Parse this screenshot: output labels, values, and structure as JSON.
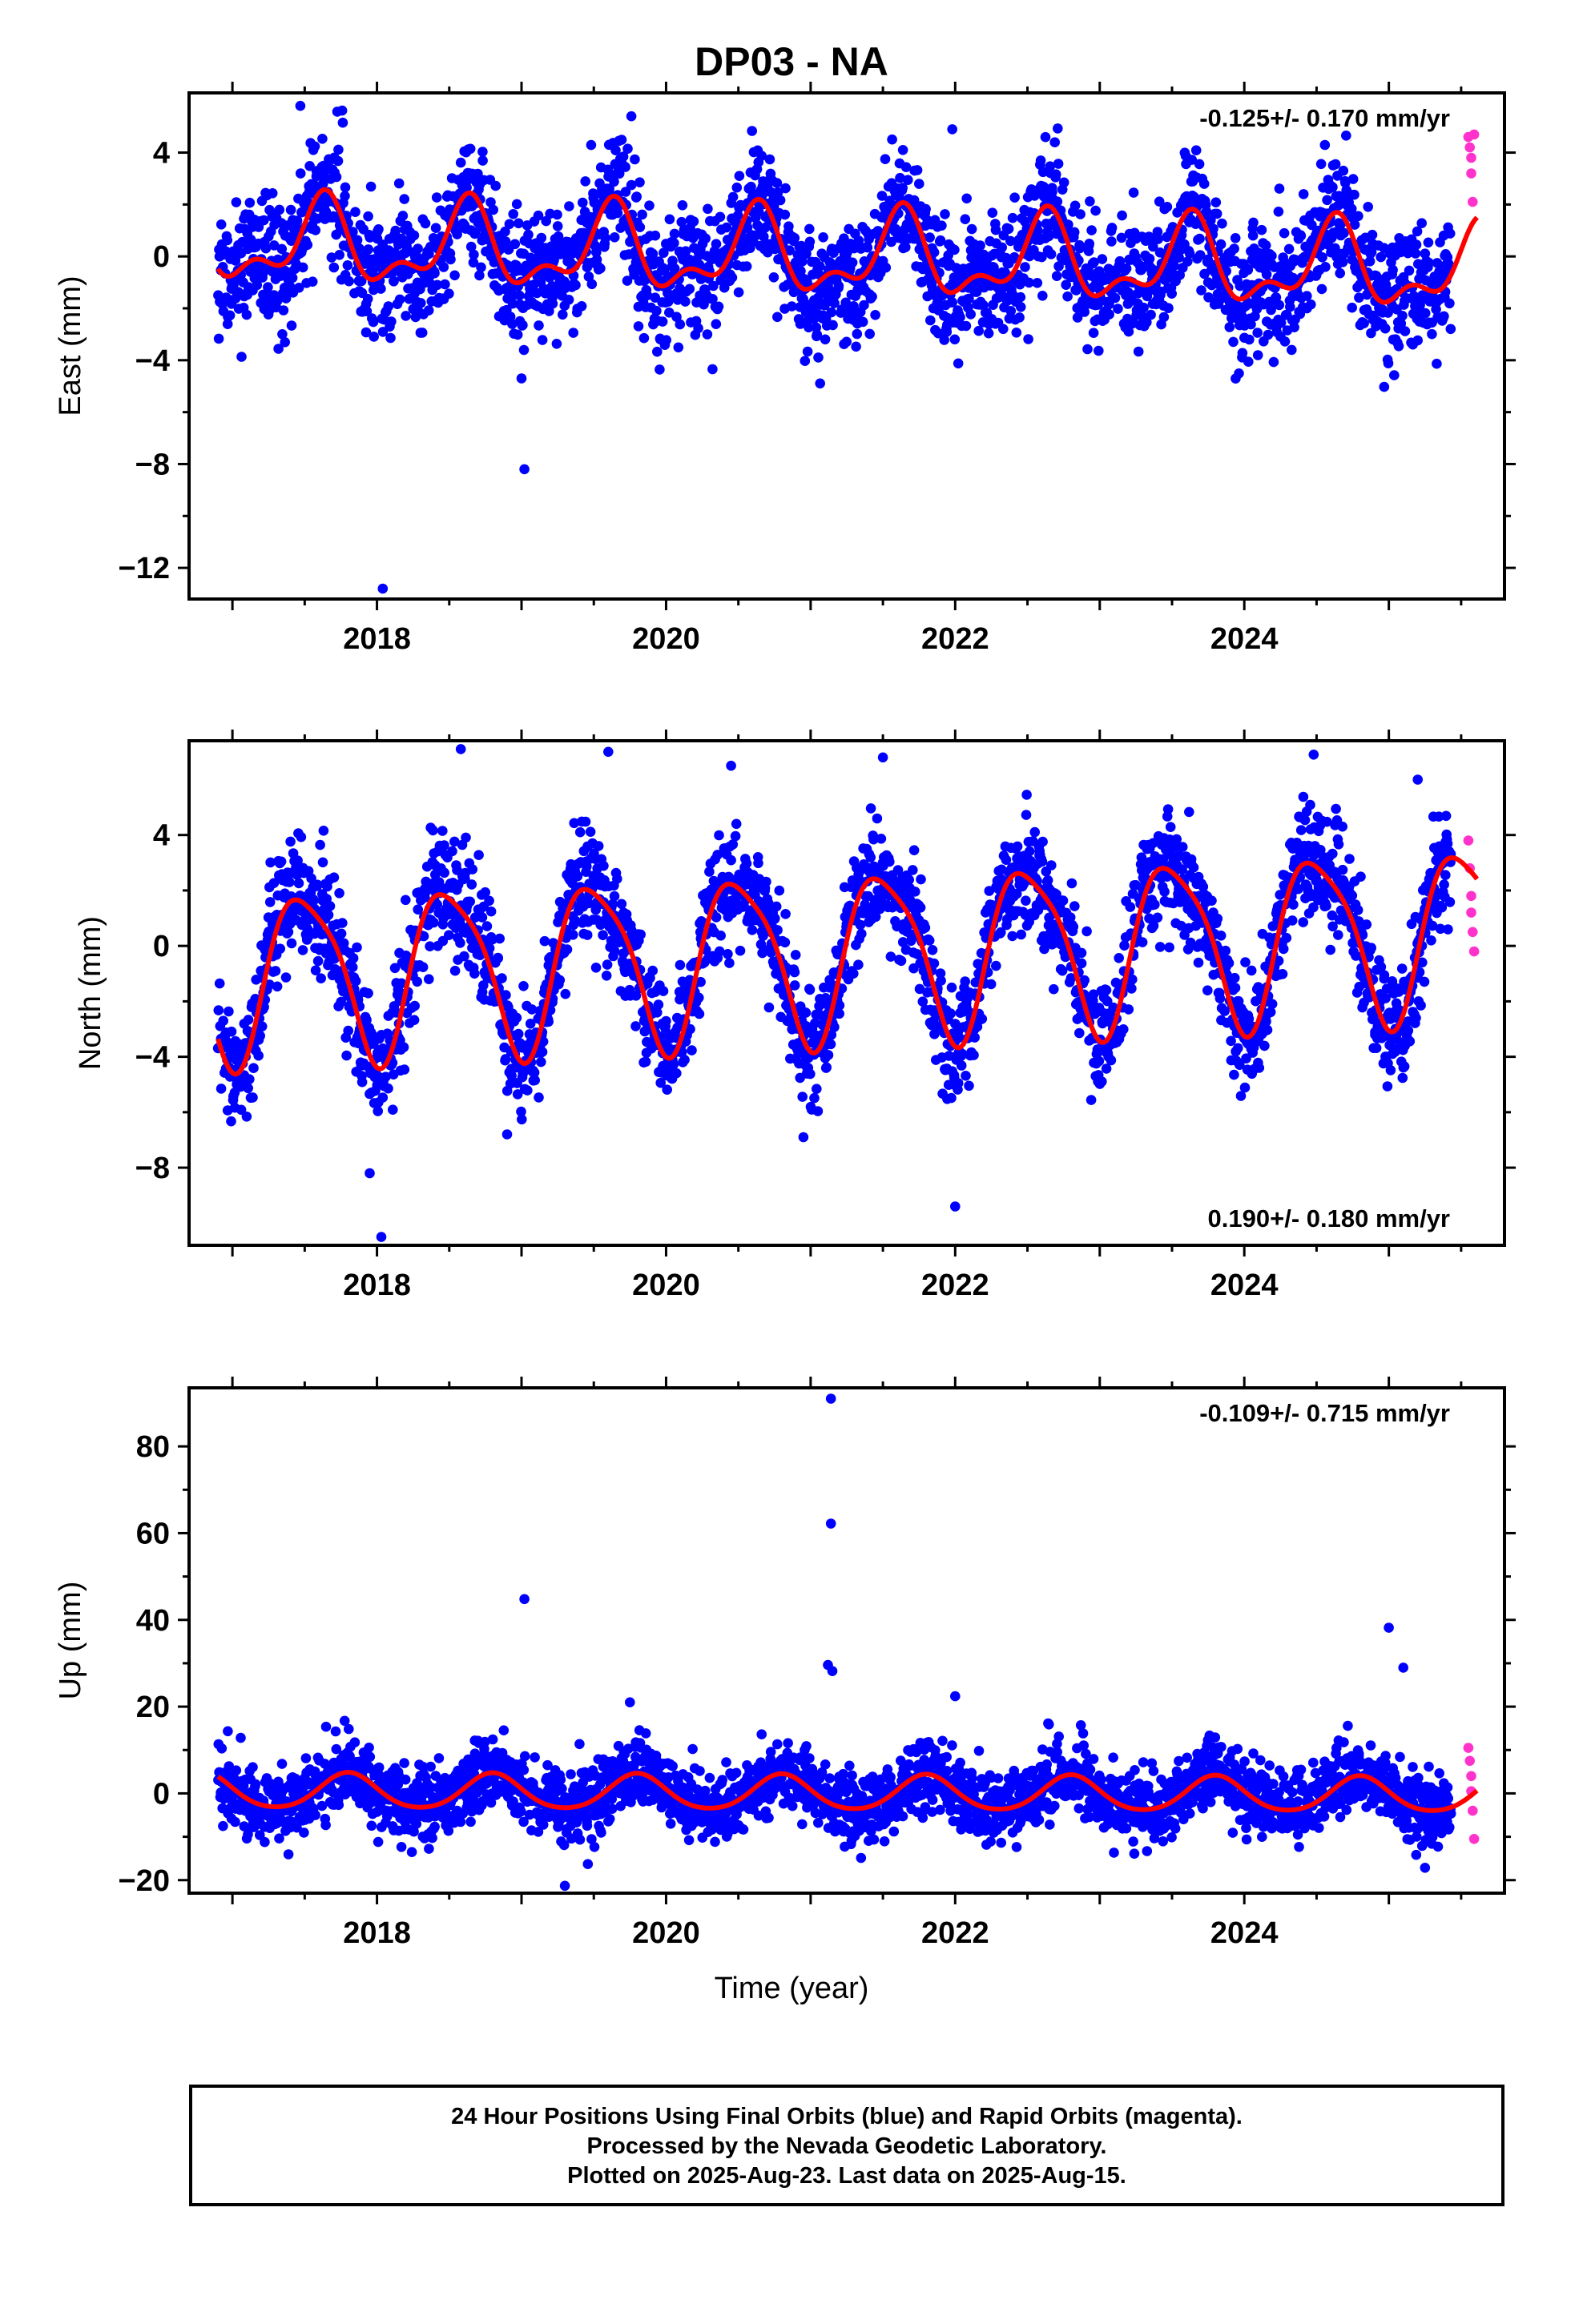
{
  "title": "DP03 - NA",
  "x_axis_title": "Time (year)",
  "colors": {
    "final_orbits": "#0000ff",
    "rapid_orbits": "#ff33cc",
    "model_fit": "#ff0000",
    "frame": "#000000"
  },
  "footer": [
    "24 Hour Positions Using Final Orbits (blue) and Rapid Orbits (magenta).",
    "Processed by the Nevada Geodetic Laboratory.",
    "Plotted on 2025-Aug-23. Last data on 2025-Aug-15."
  ],
  "chart_data": [
    {
      "type": "scatter",
      "ylabel": "East (mm)",
      "rate_label": "-0.125+/- 0.170 mm/yr",
      "rate_position": "top-right",
      "xlim": [
        2016.7,
        2025.8
      ],
      "ylim": [
        -13.2,
        6.3
      ],
      "xticks": [
        2018,
        2020,
        2022,
        2024
      ],
      "yticks": [
        -12,
        -8,
        -4,
        0,
        4
      ],
      "ytick_labels": [
        "−12",
        "−8",
        "−4",
        "0",
        "4"
      ],
      "series": [
        {
          "name": "Final Orbits",
          "color": "#0000ff",
          "seasonal_fit": {
            "start": 2016.9,
            "end": 2025.43,
            "offset": 0.0,
            "trend_per_yr": -0.125,
            "annual_amp": 1.4,
            "annual_peak": 0.62,
            "semiannual_amp": 0.75,
            "semiannual_peak": 0.65,
            "noise_sd": 1.2,
            "points_per_yr": 320,
            "seed": 11
          },
          "outliers": [
            [
              2017.47,
              5.8
            ],
            [
              2019.76,
              5.4
            ],
            [
              2021.98,
              4.9
            ],
            [
              2019.0,
              -4.7
            ],
            [
              2019.02,
              -8.2
            ],
            [
              2018.04,
              -12.8
            ]
          ]
        },
        {
          "name": "Rapid Orbits",
          "color": "#ff33cc",
          "points": [
            [
              2025.55,
              4.6
            ],
            [
              2025.56,
              4.2
            ],
            [
              2025.57,
              3.8
            ],
            [
              2025.57,
              3.2
            ],
            [
              2025.58,
              2.1
            ],
            [
              2025.59,
              4.7
            ]
          ]
        },
        {
          "name": "Model Fit",
          "color": "#ff0000",
          "curve": {
            "start": 2016.9,
            "end": 2025.61,
            "offset": 0.0,
            "trend_per_yr": -0.125,
            "annual_amp": 1.4,
            "annual_peak": 0.62,
            "semiannual_amp": 0.75,
            "semiannual_peak": 0.65
          }
        }
      ]
    },
    {
      "type": "scatter",
      "ylabel": "North (mm)",
      "rate_label": "0.190+/- 0.180 mm/yr",
      "rate_position": "bottom-right",
      "xlim": [
        2016.7,
        2025.8
      ],
      "ylim": [
        -10.8,
        7.4
      ],
      "xticks": [
        2018,
        2020,
        2022,
        2024
      ],
      "yticks": [
        -8,
        -4,
        0,
        4
      ],
      "ytick_labels": [
        "−8",
        "−4",
        "0",
        "4"
      ],
      "series": [
        {
          "name": "Final Orbits",
          "color": "#0000ff",
          "seasonal_fit": {
            "start": 2016.9,
            "end": 2025.43,
            "offset": -0.3,
            "trend_per_yr": 0.19,
            "annual_amp": 3.0,
            "annual_peak": 0.5,
            "semiannual_amp": 0.6,
            "semiannual_peak": 0.3,
            "noise_sd": 1.0,
            "points_per_yr": 320,
            "seed": 23
          },
          "outliers": [
            [
              2018.58,
              7.1
            ],
            [
              2019.6,
              7.0
            ],
            [
              2020.45,
              6.5
            ],
            [
              2021.5,
              6.8
            ],
            [
              2024.48,
              6.9
            ],
            [
              2025.2,
              6.0
            ],
            [
              2017.95,
              -8.2
            ],
            [
              2018.03,
              -10.5
            ],
            [
              2022.0,
              -9.4
            ],
            [
              2018.9,
              -6.8
            ],
            [
              2020.95,
              -6.9
            ]
          ]
        },
        {
          "name": "Rapid Orbits",
          "color": "#ff33cc",
          "points": [
            [
              2025.55,
              3.8
            ],
            [
              2025.56,
              2.8
            ],
            [
              2025.57,
              1.8
            ],
            [
              2025.57,
              1.2
            ],
            [
              2025.58,
              0.5
            ],
            [
              2025.59,
              -0.2
            ]
          ]
        },
        {
          "name": "Model Fit",
          "color": "#ff0000",
          "curve": {
            "start": 2016.9,
            "end": 2025.61,
            "offset": -0.3,
            "trend_per_yr": 0.19,
            "annual_amp": 3.0,
            "annual_peak": 0.5,
            "semiannual_amp": 0.6,
            "semiannual_peak": 0.3
          }
        }
      ]
    },
    {
      "type": "scatter",
      "ylabel": "Up (mm)",
      "rate_label": "-0.109+/- 0.715 mm/yr",
      "rate_position": "top-right",
      "xlim": [
        2016.7,
        2025.8
      ],
      "ylim": [
        -23.0,
        93.5
      ],
      "xticks": [
        2018,
        2020,
        2022,
        2024
      ],
      "yticks": [
        -20,
        0,
        20,
        40,
        60,
        80
      ],
      "ytick_labels": [
        "−20",
        "0",
        "20",
        "40",
        "60",
        "80"
      ],
      "series": [
        {
          "name": "Final Orbits",
          "color": "#0000ff",
          "seasonal_fit": {
            "start": 2016.9,
            "end": 2025.43,
            "offset": 0.0,
            "trend_per_yr": -0.109,
            "annual_amp": 4.0,
            "annual_peak": 0.8,
            "semiannual_amp": 0.5,
            "semiannual_peak": 0.3,
            "noise_sd": 4.2,
            "points_per_yr": 320,
            "seed": 37
          },
          "outliers": [
            [
              2021.14,
              91.0
            ],
            [
              2021.14,
              62.2
            ],
            [
              2019.02,
              44.8
            ],
            [
              2025.0,
              38.2
            ],
            [
              2025.1,
              29.0
            ],
            [
              2021.12,
              29.6
            ],
            [
              2021.15,
              28.2
            ],
            [
              2019.75,
              21.0
            ],
            [
              2022.0,
              22.4
            ],
            [
              2019.3,
              -21.3
            ]
          ]
        },
        {
          "name": "Rapid Orbits",
          "color": "#ff33cc",
          "points": [
            [
              2025.55,
              10.5
            ],
            [
              2025.56,
              7.5
            ],
            [
              2025.57,
              4.0
            ],
            [
              2025.57,
              0.5
            ],
            [
              2025.58,
              -4.0
            ],
            [
              2025.59,
              -10.5
            ]
          ]
        },
        {
          "name": "Model Fit",
          "color": "#ff0000",
          "curve": {
            "start": 2016.9,
            "end": 2025.61,
            "offset": 0.0,
            "trend_per_yr": -0.109,
            "annual_amp": 4.0,
            "annual_peak": 0.8,
            "semiannual_amp": 0.5,
            "semiannual_peak": 0.3
          }
        }
      ]
    }
  ]
}
